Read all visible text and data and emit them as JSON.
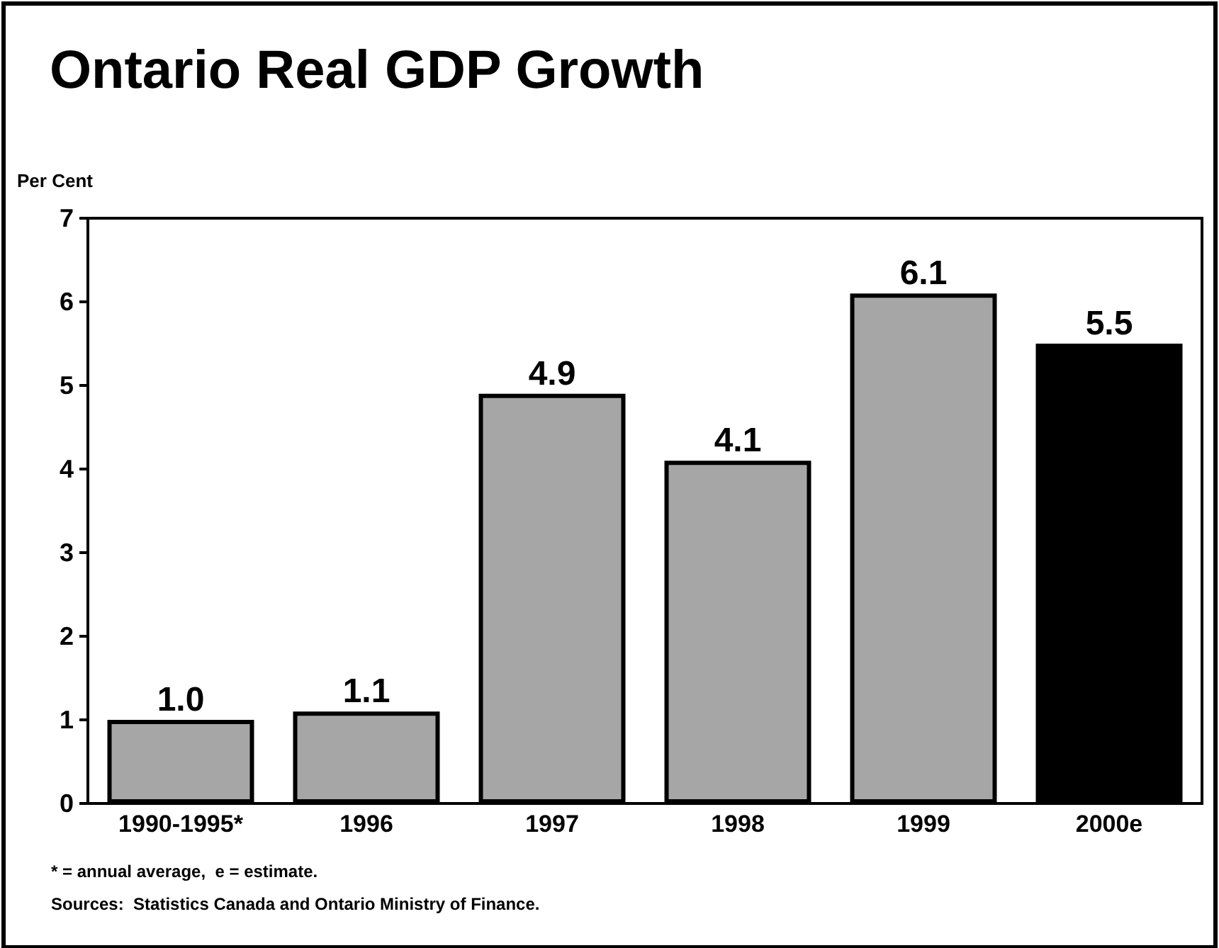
{
  "chart_data": {
    "type": "bar",
    "title": "Ontario Real GDP Growth",
    "ylabel": "Per Cent",
    "categories": [
      "1990-1995*",
      "1996",
      "1997",
      "1998",
      "1999",
      "2000e"
    ],
    "values": [
      1.0,
      1.1,
      4.9,
      4.1,
      6.1,
      5.5
    ],
    "colors": [
      "#a6a6a6",
      "#a6a6a6",
      "#a6a6a6",
      "#a6a6a6",
      "#a6a6a6",
      "#000000"
    ],
    "value_labels": [
      "1.0",
      "1.1",
      "4.9",
      "4.1",
      "6.1",
      "5.5"
    ],
    "ylim": [
      0,
      7
    ],
    "yticks": [
      0,
      1,
      2,
      3,
      4,
      5,
      6,
      7
    ],
    "grid": false,
    "annotations": [
      "* = annual average,  e = estimate.",
      "Sources:  Statistics Canada and Ontario Ministry of Finance."
    ]
  }
}
